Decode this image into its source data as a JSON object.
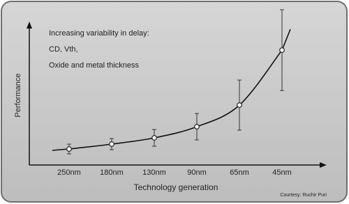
{
  "chart_data": {
    "type": "line",
    "annotation": [
      "Increasing variability in delay:",
      "CD, Vth,",
      "Oxide and metal thickness"
    ],
    "x_label": "Technology generation",
    "y_label": "Performance",
    "credit": "Courtesy: Ruchir Puri",
    "categories": [
      "250nm",
      "180nm",
      "130nm",
      "90nm",
      "65nm",
      "45nm"
    ],
    "values": [
      11.5,
      15,
      19.5,
      27.5,
      43,
      82.5
    ],
    "errors": [
      3.5,
      4,
      6,
      9.5,
      18,
      29
    ],
    "color": "#111111",
    "ylim": [
      0,
      100
    ]
  }
}
